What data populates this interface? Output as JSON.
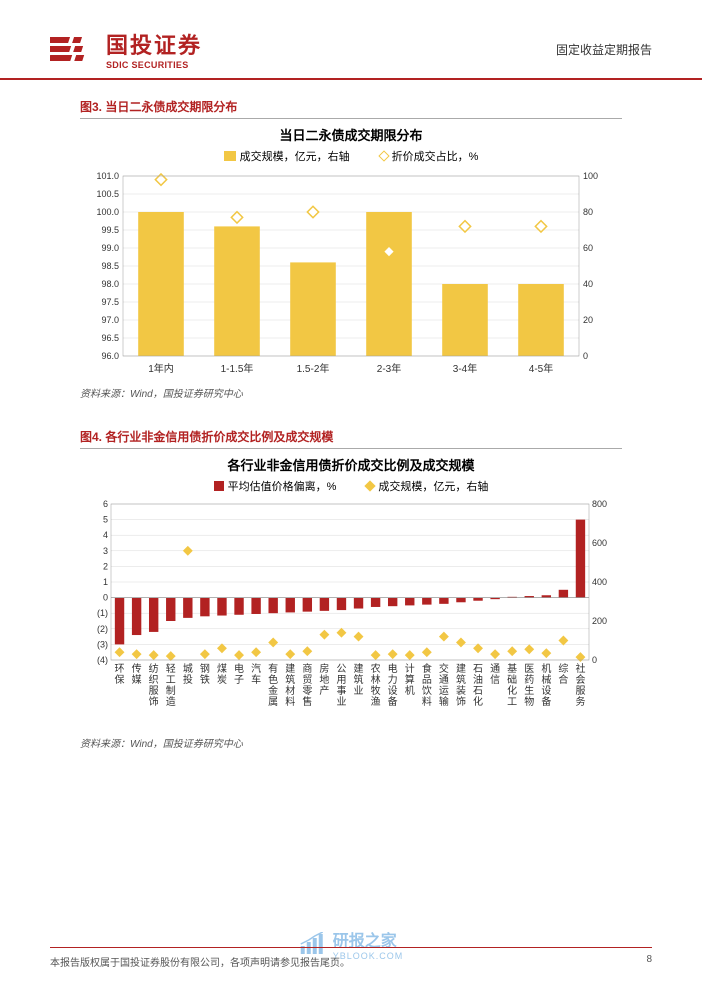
{
  "header": {
    "logo_cn": "国投证券",
    "logo_en": "SDIC SECURITIES",
    "report_type": "固定收益定期报告"
  },
  "fig3": {
    "caption": "图3. 当日二永债成交期限分布",
    "title": "当日二永债成交期限分布",
    "legend_bar": "成交规模，亿元，右轴",
    "legend_diamond": "折价成交占比，%",
    "source": "资料来源：Wind，国投证券研究中心",
    "chart": {
      "type": "bar-with-scatter",
      "categories": [
        "1年内",
        "1-1.5年",
        "1.5-2年",
        "2-3年",
        "3-4年",
        "4-5年"
      ],
      "bar_values": [
        100.0,
        99.6,
        98.6,
        100.0,
        98.0,
        98.0
      ],
      "scatter_values": [
        98,
        77,
        80,
        58,
        72,
        72
      ],
      "left_axis": {
        "min": 96.0,
        "max": 101.0,
        "step": 0.5,
        "labels": [
          "96.0",
          "96.5",
          "97.0",
          "97.5",
          "98.0",
          "98.5",
          "99.0",
          "99.5",
          "100.0",
          "100.5",
          "101.0"
        ]
      },
      "right_axis": {
        "min": 0,
        "max": 100,
        "step": 20,
        "labels": [
          "0",
          "20",
          "40",
          "60",
          "80",
          "100"
        ]
      },
      "bar_color": "#f2c744",
      "diamond_stroke": "#f2c744",
      "diamond_fill": "#ffffff",
      "grid_color": "#d9d9d9",
      "plot_bg": "#ffffff"
    }
  },
  "fig4": {
    "caption": "图4. 各行业非金信用债折价成交比例及成交规模",
    "title": "各行业非金信用债折价成交比例及成交规模",
    "legend_bar": "平均估值价格偏离，%",
    "legend_diamond": "成交规模，亿元，右轴",
    "source": "资料来源：Wind，国投证券研究中心",
    "chart": {
      "type": "bar-with-scatter",
      "categories": [
        "环保",
        "传媒",
        "纺织服饰",
        "轻工制造",
        "城投",
        "钢铁",
        "煤炭",
        "电子",
        "汽车",
        "有色金属",
        "建筑材料",
        "商贸零售",
        "房地产",
        "公用事业",
        "建筑业",
        "农林牧渔",
        "电力设备",
        "计算机",
        "食品饮料",
        "交通运输",
        "建筑装饰",
        "石油石化",
        "通信",
        "基础化工",
        "医药生物",
        "机械设备",
        "综合",
        "社会服务"
      ],
      "bar_values": [
        -3.0,
        -2.4,
        -2.2,
        -1.5,
        -1.3,
        -1.2,
        -1.15,
        -1.1,
        -1.05,
        -1.0,
        -0.95,
        -0.9,
        -0.85,
        -0.8,
        -0.7,
        -0.6,
        -0.55,
        -0.5,
        -0.45,
        -0.4,
        -0.3,
        -0.2,
        -0.1,
        0.05,
        0.1,
        0.15,
        0.5,
        5.0
      ],
      "scatter_values": [
        40,
        30,
        25,
        20,
        560,
        30,
        60,
        25,
        40,
        90,
        30,
        45,
        130,
        140,
        120,
        25,
        30,
        25,
        40,
        120,
        90,
        60,
        30,
        45,
        55,
        35,
        100,
        15
      ],
      "left_axis": {
        "min": -4,
        "max": 6,
        "step": 1,
        "labels": [
          "(4)",
          "(3)",
          "(2)",
          "(1)",
          "0",
          "1",
          "2",
          "3",
          "4",
          "5",
          "6"
        ]
      },
      "right_axis": {
        "min": 0,
        "max": 800,
        "step": 200,
        "labels": [
          "0",
          "200",
          "400",
          "600",
          "800"
        ]
      },
      "bar_color": "#b22222",
      "diamond_fill": "#f2c744",
      "grid_color": "#d9d9d9",
      "plot_bg": "#ffffff"
    }
  },
  "footer": {
    "left": "本报告版权属于国投证券股份有限公司，各项声明请参见报告尾页。",
    "page": "8"
  },
  "watermark": {
    "text": "研报之家",
    "url": "YBLOOK.COM"
  }
}
